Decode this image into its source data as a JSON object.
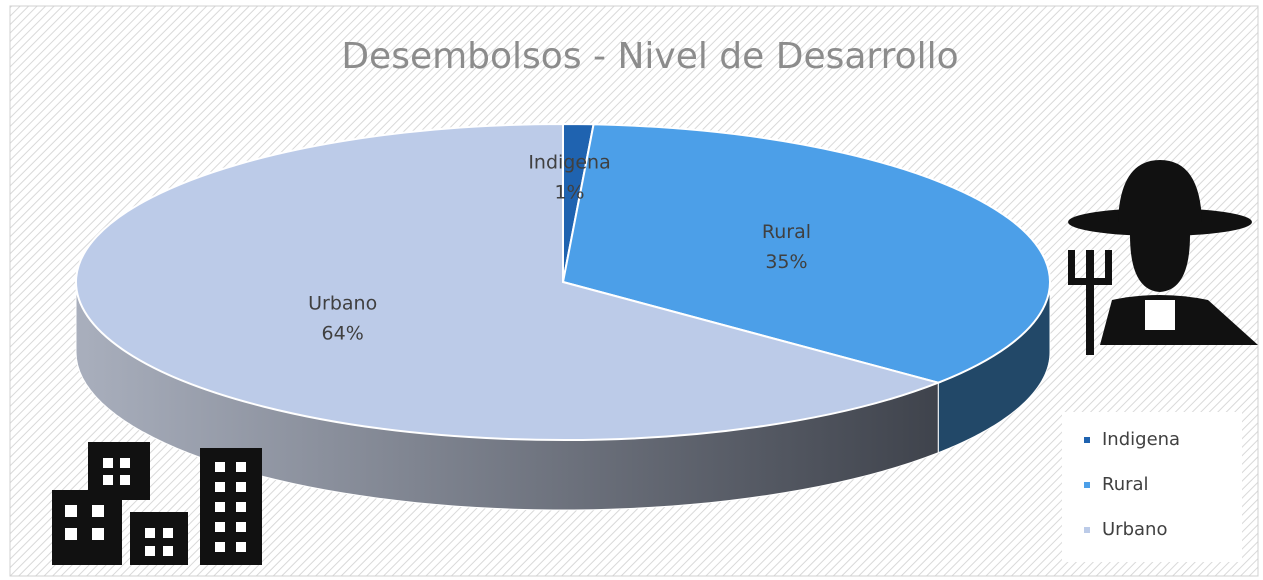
{
  "chart_data": {
    "type": "pie",
    "title": "Desembolsos - Nivel de Desarrollo",
    "categories": [
      "Indigena",
      "Rural",
      "Urbano"
    ],
    "values": [
      1,
      35,
      64
    ],
    "value_labels": [
      "1%",
      "35%",
      "64%"
    ],
    "colors": [
      "#1f63b0",
      "#4c9fe8",
      "#bccbe8"
    ],
    "legend": "bottom-right"
  }
}
